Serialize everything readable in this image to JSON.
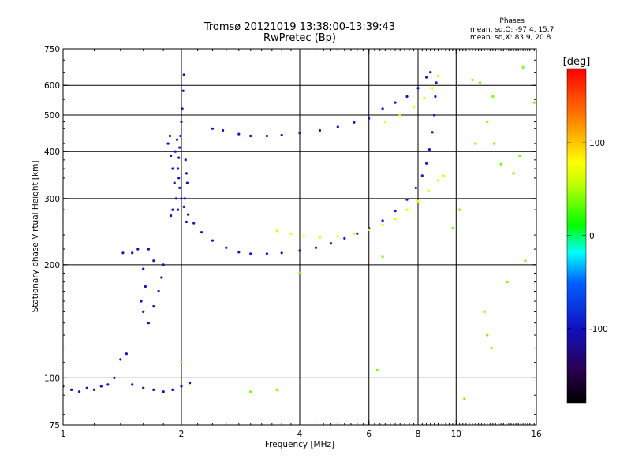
{
  "header": {
    "title_line1": "Tromsø 20121019 13:38:00-13:39:43",
    "title_line2": "RwPretec (Bp)"
  },
  "stats": {
    "heading": "Phases",
    "line_o": "mean, sd,O:  -97.4,  15.7",
    "line_x": "mean, sd,X:   83.9,  20.8"
  },
  "colorbar": {
    "unit_label": "[deg]",
    "range": [
      -180,
      180
    ],
    "tick_values": [
      100,
      0,
      -100
    ],
    "tick_labels": [
      "100",
      "0",
      "-100"
    ]
  },
  "chart_data": {
    "type": "scatter",
    "xlabel": "Frequency [MHz]",
    "ylabel": "Stationary phase Virtual Height [km]",
    "x_scale": "log",
    "y_scale": "log",
    "xlim": [
      1,
      16
    ],
    "ylim": [
      75,
      750
    ],
    "x_ticks": [
      1,
      2,
      4,
      6,
      8,
      10,
      16
    ],
    "x_tick_labels": [
      "1",
      "2",
      "4",
      "6",
      "8",
      "10",
      "16"
    ],
    "y_ticks": [
      75,
      100,
      200,
      300,
      400,
      500,
      600,
      750
    ],
    "y_tick_labels": [
      "75",
      "100",
      "200",
      "300",
      "400",
      "500",
      "600",
      "750"
    ],
    "grid": true,
    "major_grid_x": [
      2,
      4,
      6,
      8,
      10
    ],
    "major_grid_y": [
      100,
      200,
      300,
      400,
      500,
      600
    ],
    "series": [
      {
        "trace": "O-mode F-layer",
        "phase": -95,
        "points": [
          [
            2.03,
            640
          ],
          [
            2.02,
            580
          ],
          [
            2.01,
            520
          ],
          [
            2.0,
            480
          ],
          [
            1.99,
            440
          ],
          [
            1.98,
            410
          ],
          [
            1.97,
            385
          ],
          [
            1.96,
            360
          ],
          [
            1.97,
            340
          ],
          [
            1.98,
            320
          ],
          [
            2.0,
            300
          ],
          [
            2.03,
            285
          ],
          [
            2.08,
            272
          ],
          [
            2.15,
            258
          ],
          [
            2.25,
            244
          ],
          [
            2.4,
            232
          ],
          [
            2.6,
            222
          ],
          [
            2.8,
            216
          ],
          [
            3.0,
            214
          ],
          [
            3.3,
            214
          ],
          [
            3.6,
            215
          ],
          [
            4.0,
            218
          ],
          [
            4.4,
            222
          ],
          [
            4.8,
            228
          ],
          [
            5.2,
            235
          ],
          [
            5.6,
            242
          ],
          [
            6.0,
            250
          ],
          [
            6.5,
            262
          ],
          [
            7.0,
            278
          ],
          [
            7.5,
            298
          ],
          [
            7.9,
            320
          ],
          [
            8.2,
            345
          ],
          [
            8.4,
            372
          ],
          [
            8.55,
            405
          ],
          [
            8.7,
            450
          ],
          [
            8.8,
            500
          ],
          [
            8.85,
            560
          ],
          [
            8.9,
            610
          ]
        ]
      },
      {
        "trace": "O-mode F-layer cluster",
        "phase": -100,
        "points": [
          [
            1.85,
            420
          ],
          [
            1.88,
            390
          ],
          [
            1.9,
            360
          ],
          [
            1.92,
            330
          ],
          [
            1.94,
            300
          ],
          [
            1.9,
            280
          ],
          [
            1.88,
            270
          ],
          [
            1.93,
            400
          ],
          [
            1.95,
            430
          ],
          [
            2.05,
            380
          ],
          [
            2.06,
            350
          ],
          [
            2.07,
            330
          ],
          [
            2.04,
            300
          ],
          [
            1.87,
            440
          ],
          [
            1.96,
            280
          ],
          [
            2.06,
            260
          ]
        ]
      },
      {
        "trace": "O-mode sporadic/E traces",
        "phase": -100,
        "points": [
          [
            1.0,
            95
          ],
          [
            1.05,
            93
          ],
          [
            1.1,
            92
          ],
          [
            1.15,
            94
          ],
          [
            1.2,
            93
          ],
          [
            1.25,
            95
          ],
          [
            1.3,
            96
          ],
          [
            1.35,
            100
          ],
          [
            1.4,
            112
          ],
          [
            1.45,
            116
          ],
          [
            1.5,
            96
          ],
          [
            1.6,
            94
          ],
          [
            1.7,
            93
          ],
          [
            1.8,
            92
          ],
          [
            1.9,
            93
          ],
          [
            2.0,
            95
          ],
          [
            2.1,
            97
          ],
          [
            1.42,
            215
          ],
          [
            1.5,
            215
          ],
          [
            1.55,
            220
          ],
          [
            1.65,
            220
          ],
          [
            1.6,
            195
          ],
          [
            1.62,
            175
          ],
          [
            1.58,
            160
          ],
          [
            1.6,
            150
          ],
          [
            1.65,
            140
          ],
          [
            1.7,
            155
          ],
          [
            1.75,
            170
          ],
          [
            1.78,
            185
          ],
          [
            1.8,
            200
          ],
          [
            1.7,
            205
          ]
        ]
      },
      {
        "trace": "O-mode upper branch",
        "phase": -95,
        "points": [
          [
            2.4,
            460
          ],
          [
            2.55,
            455
          ],
          [
            2.8,
            445
          ],
          [
            3.0,
            440
          ],
          [
            3.3,
            440
          ],
          [
            3.6,
            442
          ],
          [
            4.0,
            448
          ],
          [
            4.5,
            455
          ],
          [
            5.0,
            465
          ],
          [
            5.5,
            478
          ],
          [
            6.0,
            490
          ],
          [
            6.5,
            520
          ],
          [
            7.0,
            540
          ],
          [
            7.5,
            560
          ],
          [
            8.0,
            590
          ],
          [
            8.4,
            630
          ],
          [
            8.6,
            650
          ]
        ]
      },
      {
        "trace": "X-mode F-layer",
        "phase": 85,
        "points": [
          [
            3.5,
            246
          ],
          [
            3.8,
            242
          ],
          [
            4.1,
            238
          ],
          [
            4.5,
            236
          ],
          [
            5.0,
            238
          ],
          [
            5.5,
            242
          ],
          [
            6.0,
            248
          ],
          [
            6.5,
            255
          ],
          [
            7.0,
            265
          ],
          [
            7.5,
            280
          ],
          [
            8.0,
            295
          ],
          [
            8.5,
            315
          ],
          [
            9.0,
            335
          ],
          [
            9.3,
            345
          ],
          [
            6.6,
            480
          ],
          [
            7.2,
            500
          ],
          [
            7.8,
            525
          ],
          [
            8.3,
            555
          ],
          [
            8.7,
            590
          ],
          [
            9.0,
            635
          ]
        ]
      },
      {
        "trace": "scattered noise",
        "phase": 40,
        "points": [
          [
            2.0,
            110
          ],
          [
            3.0,
            92
          ],
          [
            3.5,
            93
          ],
          [
            4.0,
            190
          ],
          [
            6.3,
            105
          ],
          [
            6.5,
            210
          ],
          [
            11.0,
            620
          ],
          [
            11.5,
            610
          ],
          [
            12.0,
            480
          ],
          [
            12.5,
            420
          ],
          [
            13.0,
            370
          ],
          [
            13.5,
            180
          ],
          [
            14.5,
            390
          ],
          [
            15.0,
            205
          ],
          [
            12.0,
            130
          ],
          [
            12.3,
            120
          ],
          [
            14.0,
            350
          ],
          [
            11.2,
            420
          ],
          [
            12.4,
            560
          ],
          [
            14.8,
            670
          ],
          [
            9.8,
            250
          ],
          [
            10.5,
            88
          ],
          [
            11.8,
            150
          ],
          [
            10.2,
            280
          ],
          [
            15.8,
            540
          ]
        ]
      }
    ]
  }
}
